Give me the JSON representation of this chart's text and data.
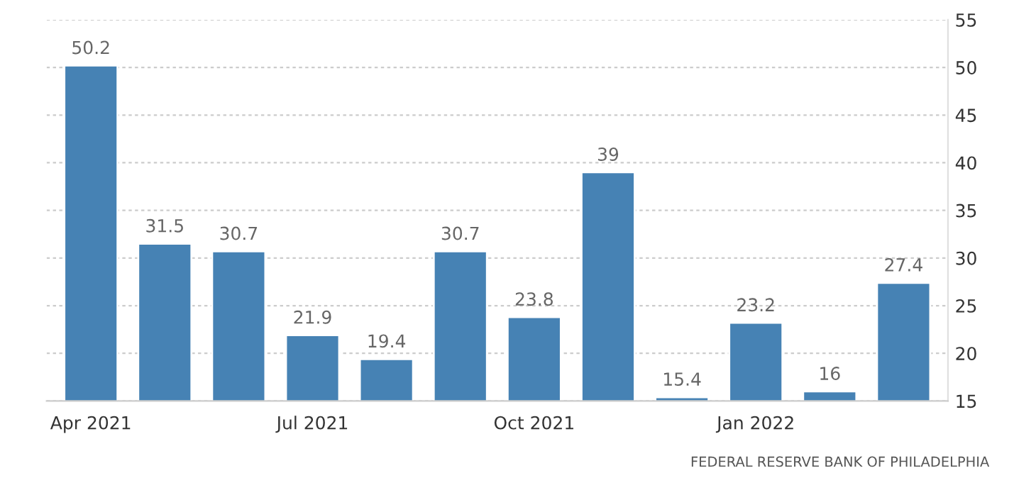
{
  "chart_data": {
    "type": "bar",
    "categories": [
      "Apr 2021",
      null,
      null,
      "Jul 2021",
      null,
      null,
      "Oct 2021",
      null,
      null,
      "Jan 2022",
      null,
      null
    ],
    "values": [
      50.2,
      31.5,
      30.7,
      21.9,
      19.4,
      30.7,
      23.8,
      39,
      15.4,
      23.2,
      16,
      27.4
    ],
    "color": "#4682b4",
    "ylim": [
      15,
      55
    ],
    "yticks": [
      15,
      20,
      25,
      30,
      35,
      40,
      45,
      50,
      55
    ],
    "grid": "y",
    "data_labels": true,
    "annotations": [
      "FEDERAL RESERVE BANK OF PHILADELPHIA"
    ]
  }
}
